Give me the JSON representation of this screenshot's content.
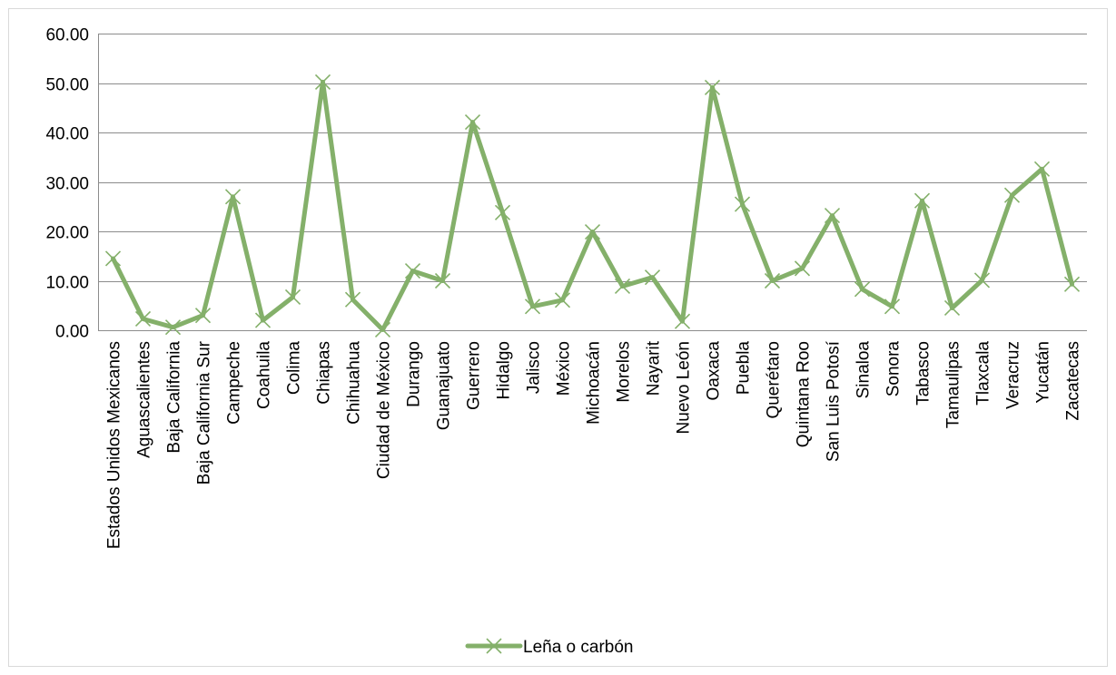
{
  "chart_data": {
    "type": "line",
    "title": "",
    "xlabel": "",
    "ylabel": "",
    "ylim": [
      0,
      60
    ],
    "yticks": [
      "0.00",
      "10.00",
      "20.00",
      "30.00",
      "40.00",
      "50.00",
      "60.00"
    ],
    "grid": true,
    "legend_position": "bottom",
    "categories": [
      "Estados Unidos Mexicanos",
      "Aguascalientes",
      "Baja California",
      "Baja California Sur",
      "Campeche",
      "Coahuila",
      "Colima",
      "Chiapas",
      "Chihuahua",
      "Ciudad de México",
      "Durango",
      "Guanajuato",
      "Guerrero",
      "Hidalgo",
      "Jalisco",
      "México",
      "Michoacán",
      "Morelos",
      "Nayarit",
      "Nuevo León",
      "Oaxaca",
      "Puebla",
      "Querétaro",
      "Quintana Roo",
      "San Luis Potosí",
      "Sinaloa",
      "Sonora",
      "Tabasco",
      "Tamaulipas",
      "Tlaxcala",
      "Veracruz",
      "Yucatán",
      "Zacatecas"
    ],
    "series": [
      {
        "name": "Leña o carbón",
        "color": "#84b06a",
        "marker": "x",
        "values": [
          14.5,
          2.3,
          0.6,
          3.0,
          27.0,
          2.0,
          6.7,
          50.2,
          6.2,
          0.1,
          12.0,
          10.0,
          42.1,
          23.8,
          4.8,
          6.1,
          19.9,
          8.9,
          10.7,
          1.8,
          49.1,
          25.5,
          10.0,
          12.5,
          23.2,
          8.3,
          4.8,
          26.2,
          4.5,
          10.1,
          27.3,
          32.6,
          9.3
        ]
      }
    ]
  }
}
